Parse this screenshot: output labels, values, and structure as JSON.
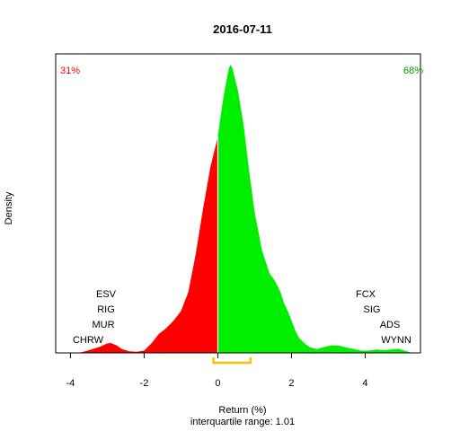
{
  "chart_data": {
    "type": "area",
    "title": "2016-07-11",
    "xlabel": "Return (%)",
    "ylabel": "Density",
    "subtitle": "interquartile range: 1.01",
    "xlim": [
      -4.4,
      5.5
    ],
    "ylim": [
      0,
      0.78
    ],
    "xticks": [
      "-4",
      "-2",
      "0",
      "2",
      "4"
    ],
    "xtick_values": [
      -4,
      -2,
      0,
      2,
      4
    ],
    "grid": false,
    "split_at": 0,
    "negative_share": "31%",
    "positive_share": "68%",
    "colors": {
      "negative": "#FF0000",
      "positive": "#00EE00",
      "iqr": "#FFC000",
      "divider": "#FFFFFF",
      "baseline": "#BEBEBE"
    },
    "iqr": [
      -0.12,
      0.89
    ],
    "density": {
      "x": [
        -3.75,
        -3.6,
        -3.4,
        -3.2,
        -3.0,
        -2.9,
        -2.75,
        -2.6,
        -2.4,
        -2.2,
        -2.0,
        -1.8,
        -1.6,
        -1.4,
        -1.2,
        -1.0,
        -0.8,
        -0.6,
        -0.4,
        -0.2,
        -0.05,
        0.0,
        0.1,
        0.2,
        0.3,
        0.35,
        0.4,
        0.55,
        0.7,
        0.85,
        1.0,
        1.2,
        1.4,
        1.55,
        1.7,
        1.8,
        1.9,
        2.0,
        2.1,
        2.2,
        2.35,
        2.5,
        2.7,
        2.9,
        3.1,
        3.3,
        3.5,
        3.7,
        3.9,
        4.1,
        4.3,
        4.5,
        4.7,
        4.9,
        5.1,
        5.25
      ],
      "y": [
        0.001,
        0.004,
        0.01,
        0.016,
        0.025,
        0.026,
        0.02,
        0.01,
        0.004,
        0.003,
        0.006,
        0.025,
        0.05,
        0.065,
        0.085,
        0.11,
        0.16,
        0.26,
        0.38,
        0.49,
        0.55,
        0.57,
        0.64,
        0.7,
        0.75,
        0.76,
        0.75,
        0.69,
        0.6,
        0.48,
        0.37,
        0.27,
        0.21,
        0.19,
        0.16,
        0.13,
        0.11,
        0.085,
        0.06,
        0.04,
        0.025,
        0.015,
        0.01,
        0.016,
        0.02,
        0.019,
        0.014,
        0.01,
        0.006,
        0.006,
        0.009,
        0.007,
        0.009,
        0.011,
        0.005,
        0.001
      ]
    },
    "annotations_left": [
      "ESV",
      "RIG",
      "MUR",
      "CHRW"
    ],
    "annotations_right": [
      "FCX",
      "SIG",
      "ADS",
      "WYNN"
    ]
  }
}
